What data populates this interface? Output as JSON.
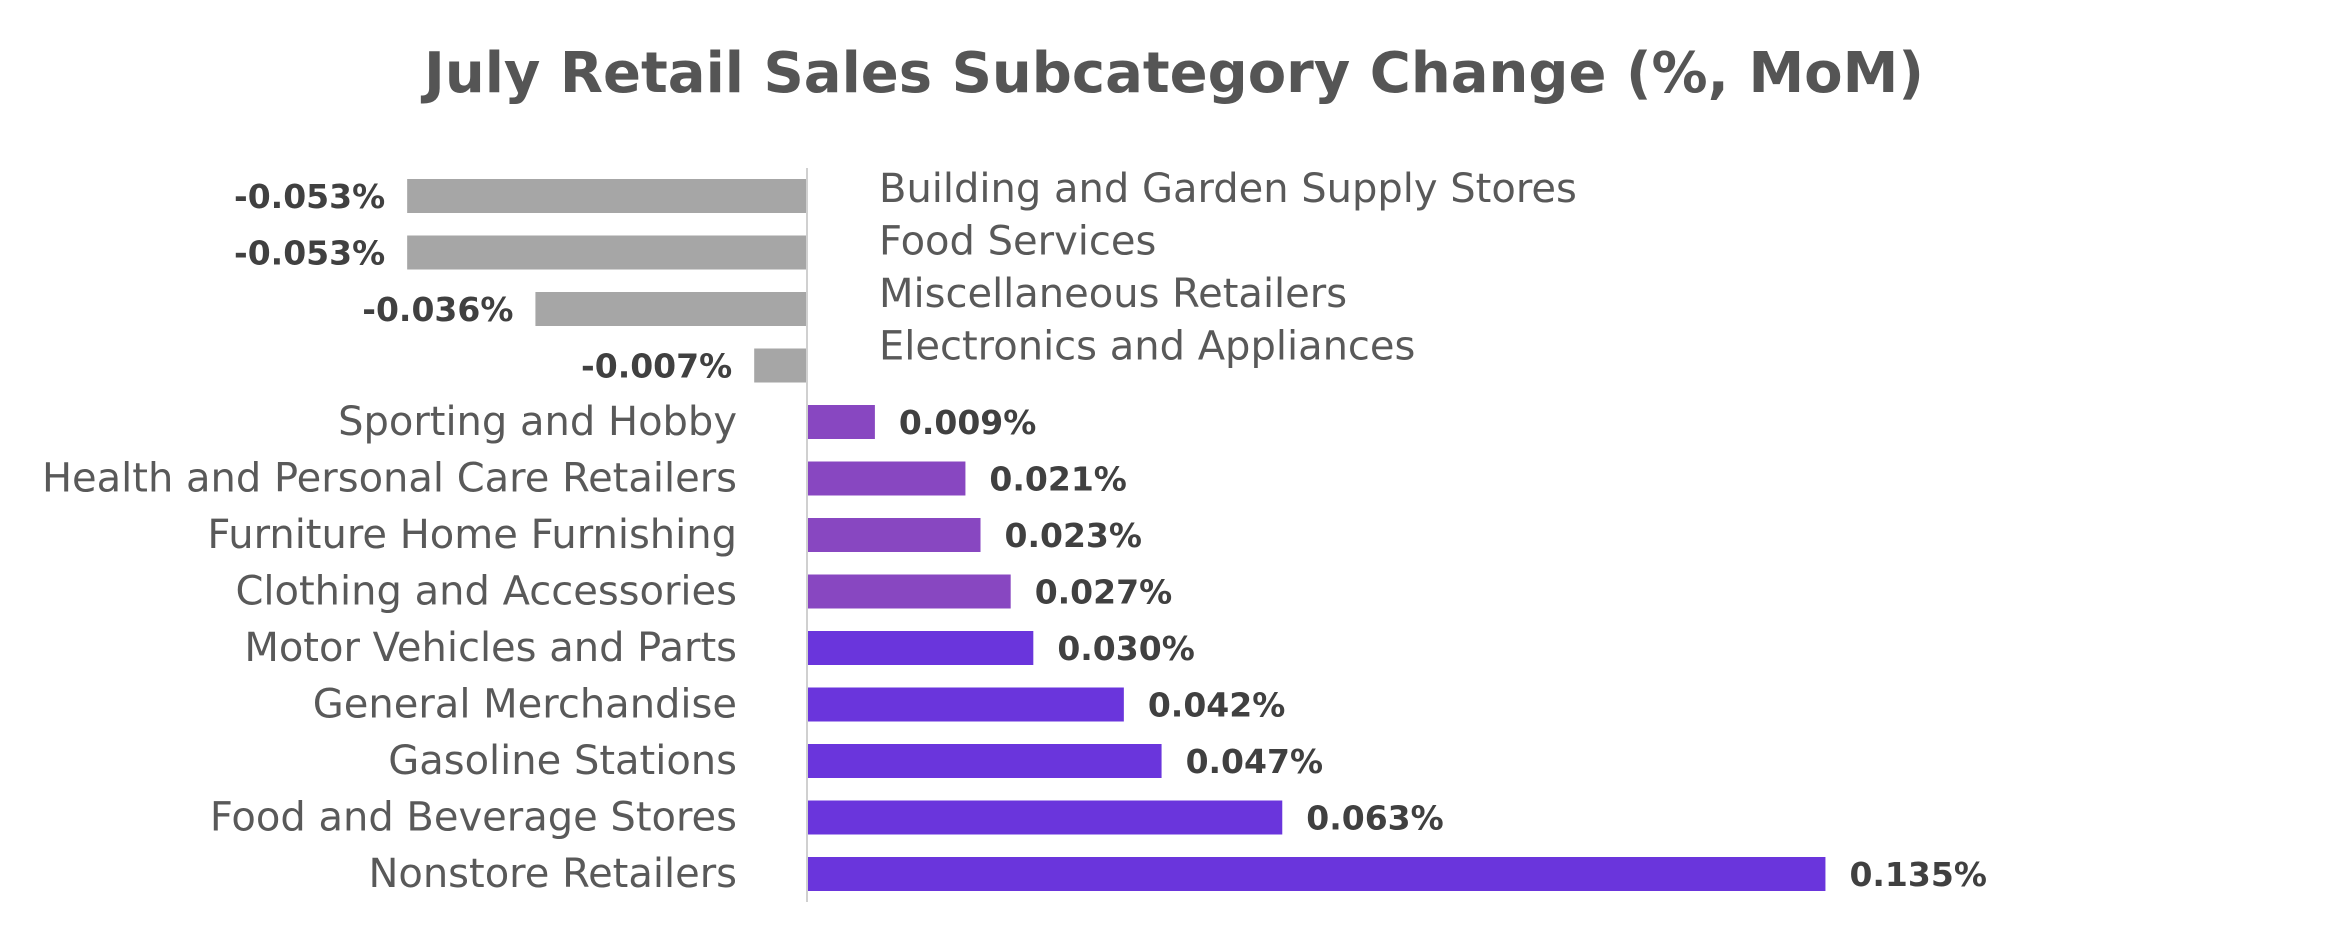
{
  "chart_data": {
    "type": "bar",
    "orientation": "horizontal",
    "title": "July Retail Sales Subcategory Change (%, MoM)",
    "xlabel": "",
    "ylabel": "",
    "grid": false,
    "legend": "none",
    "value_suffix": "%",
    "categories": [
      "Building and Garden Supply Stores",
      "Food Services",
      "Miscellaneous Retailers",
      "Electronics and Appliances",
      "Sporting and Hobby",
      "Health and Personal Care Retailers",
      "Furniture Home Furnishing",
      "Clothing and Accessories",
      "Motor Vehicles and Parts",
      "General Merchandise",
      "Gasoline Stations",
      "Food and Beverage Stores",
      "Nonstore Retailers"
    ],
    "values": [
      -0.053,
      -0.053,
      -0.036,
      -0.007,
      0.009,
      0.021,
      0.023,
      0.027,
      0.03,
      0.042,
      0.047,
      0.063,
      0.135
    ],
    "value_labels": [
      "-0.053%",
      "-0.053%",
      "-0.036%",
      "-0.007%",
      "0.009%",
      "0.021%",
      "0.023%",
      "0.027%",
      "0.030%",
      "0.042%",
      "0.047%",
      "0.063%",
      "0.135%"
    ],
    "colors": [
      "#a6a6a6",
      "#a6a6a6",
      "#a6a6a6",
      "#a6a6a6",
      "#8847c1",
      "#8847c1",
      "#8847c1",
      "#8847c1",
      "#6a35dc",
      "#6a35dc",
      "#6a35dc",
      "#6a35dc",
      "#6a35dc"
    ],
    "axis_color": "#d0d0d0"
  }
}
